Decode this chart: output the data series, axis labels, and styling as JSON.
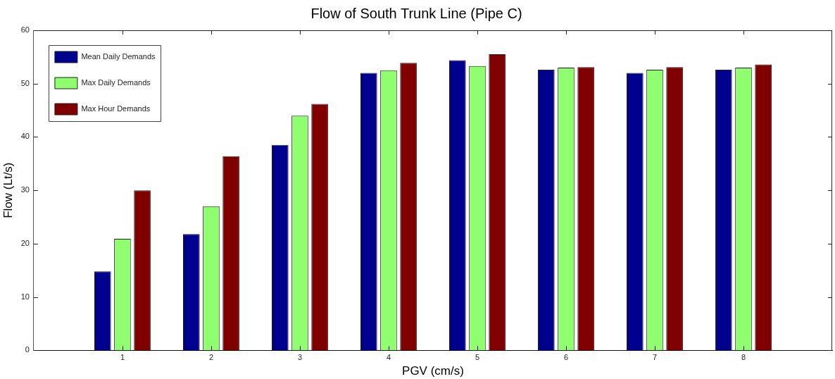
{
  "chart_data": {
    "type": "bar",
    "title": "Flow of South Trunk Line (Pipe C)",
    "xlabel": "PGV (cm/s)",
    "ylabel": "Flow (Lt/s)",
    "x": [
      1,
      2,
      3,
      4,
      5,
      6,
      7,
      8
    ],
    "xlim": [
      0,
      9
    ],
    "xticks": [
      1,
      2,
      3,
      4,
      5,
      6,
      7,
      8
    ],
    "ylim": [
      0,
      60
    ],
    "yticks": [
      0,
      10,
      20,
      30,
      40,
      50,
      60
    ],
    "series": [
      {
        "name": "Mean Daily Demands",
        "color": "#00008f",
        "values": [
          14.8,
          21.8,
          38.5,
          52.0,
          54.4,
          52.6,
          52.0,
          52.6
        ]
      },
      {
        "name": "Max Daily Demands",
        "color": "#8fff70",
        "values": [
          20.9,
          27.0,
          44.0,
          52.5,
          53.3,
          53.0,
          52.6,
          53.0
        ]
      },
      {
        "name": "Max Hour Demands",
        "color": "#800000",
        "values": [
          30.0,
          36.4,
          46.2,
          53.9,
          55.5,
          53.1,
          53.1,
          53.6
        ]
      }
    ],
    "legend": "top left"
  }
}
